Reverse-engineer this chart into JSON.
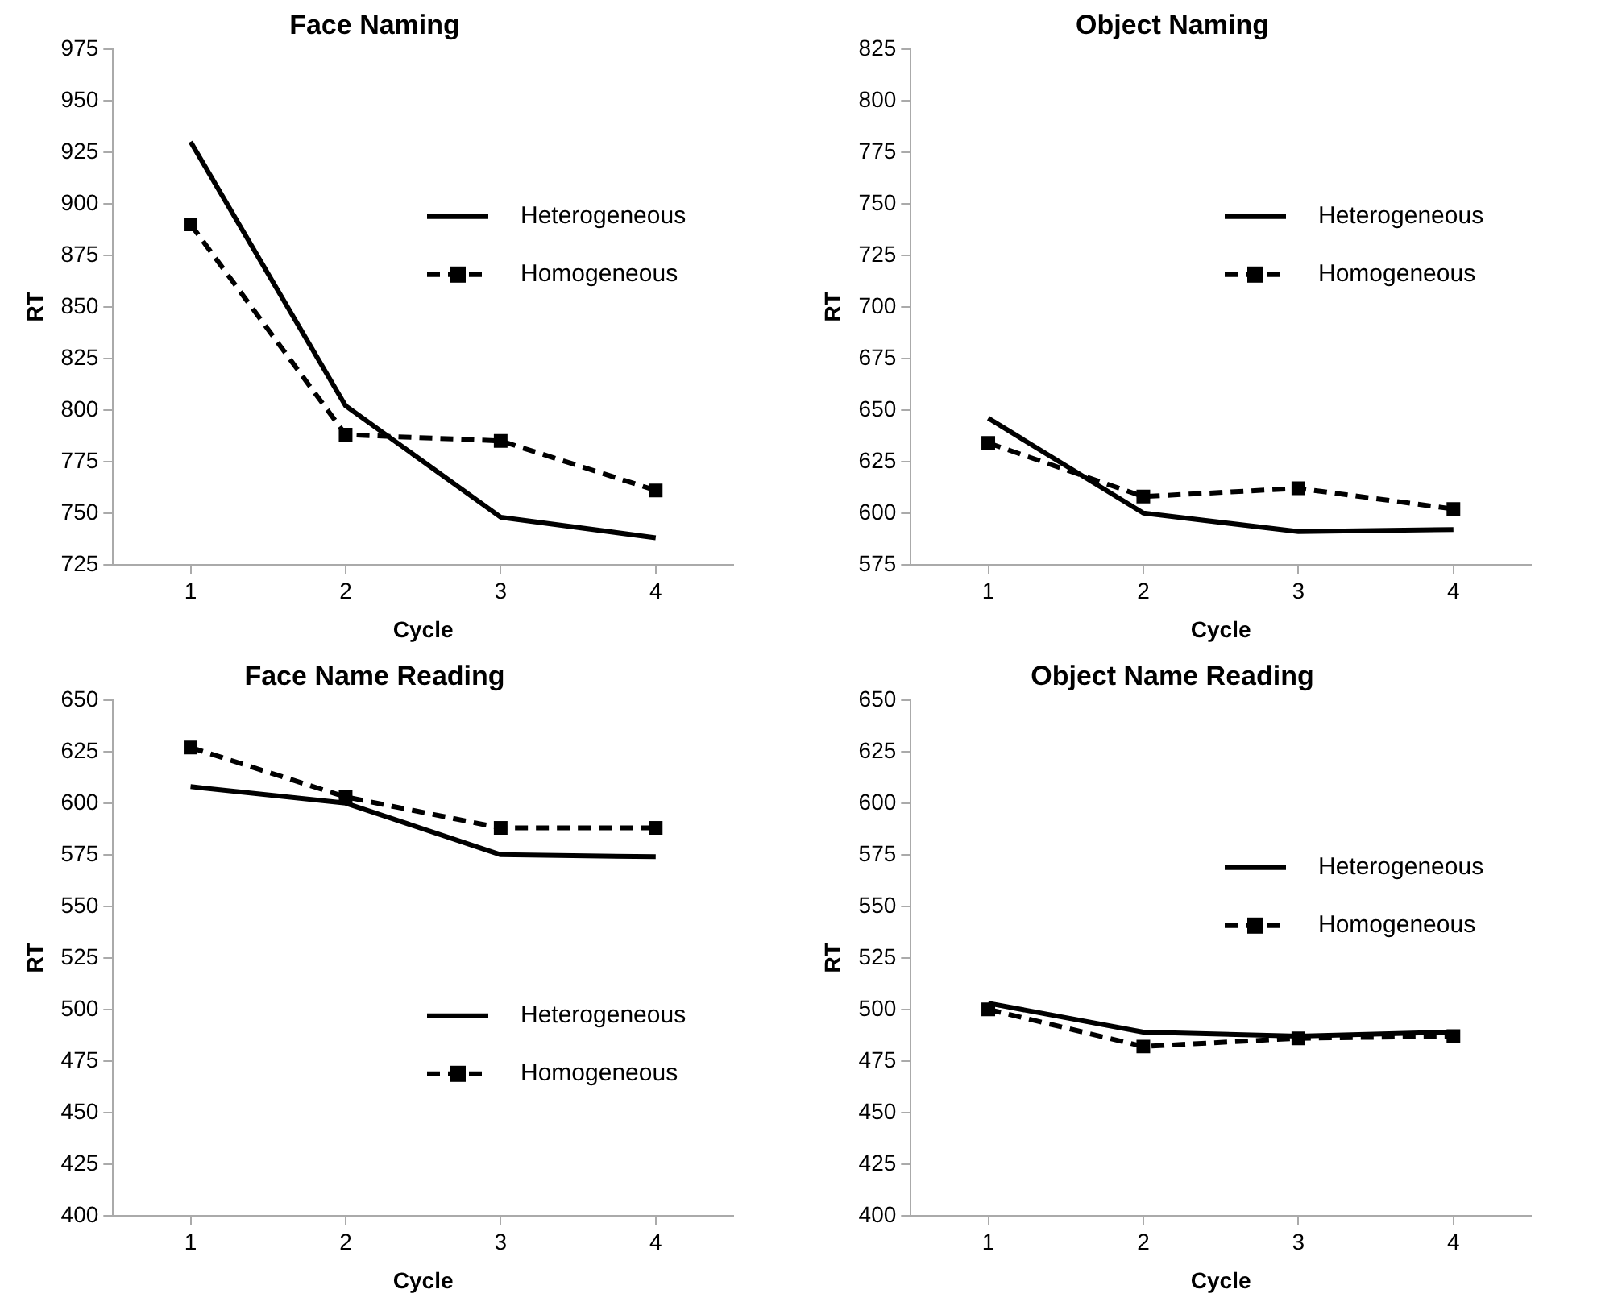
{
  "chart_data": [
    {
      "type": "line",
      "title": "Face Naming",
      "xlabel": "Cycle",
      "ylabel": "RT",
      "categories": [
        "1",
        "2",
        "3",
        "4"
      ],
      "ylim": [
        725,
        975
      ],
      "yticks": [
        725,
        750,
        775,
        800,
        825,
        850,
        875,
        900,
        925,
        950,
        975
      ],
      "legend": "right",
      "series": [
        {
          "name": "Heterogeneous",
          "color": "#000000",
          "line_style": "solid",
          "marker": "none",
          "values": [
            930,
            802,
            748,
            738
          ]
        },
        {
          "name": "Homogeneous",
          "color": "#000000",
          "line_style": "dashed",
          "marker": "square",
          "values": [
            890,
            788,
            785,
            761
          ]
        }
      ]
    },
    {
      "type": "line",
      "title": "Object Naming",
      "xlabel": "Cycle",
      "ylabel": "RT",
      "categories": [
        "1",
        "2",
        "3",
        "4"
      ],
      "ylim": [
        575,
        825
      ],
      "yticks": [
        575,
        600,
        625,
        650,
        675,
        700,
        725,
        750,
        775,
        800,
        825
      ],
      "legend": "right",
      "series": [
        {
          "name": "Heterogeneous",
          "color": "#000000",
          "line_style": "solid",
          "marker": "none",
          "values": [
            646,
            600,
            591,
            592
          ]
        },
        {
          "name": "Homogeneous",
          "color": "#000000",
          "line_style": "dashed",
          "marker": "square",
          "values": [
            634,
            608,
            612,
            602
          ]
        }
      ]
    },
    {
      "type": "line",
      "title": "Face Name Reading",
      "xlabel": "Cycle",
      "ylabel": "RT",
      "categories": [
        "1",
        "2",
        "3",
        "4"
      ],
      "ylim": [
        400,
        650
      ],
      "yticks": [
        400,
        425,
        450,
        475,
        500,
        525,
        550,
        575,
        600,
        625,
        650
      ],
      "legend": "bottom right",
      "series": [
        {
          "name": "Heterogeneous",
          "color": "#000000",
          "line_style": "solid",
          "marker": "none",
          "values": [
            608,
            600,
            575,
            574
          ]
        },
        {
          "name": "Homogeneous",
          "color": "#000000",
          "line_style": "dashed",
          "marker": "square",
          "values": [
            627,
            603,
            588,
            588
          ]
        }
      ]
    },
    {
      "type": "line",
      "title": "Object Name Reading",
      "xlabel": "Cycle",
      "ylabel": "RT",
      "categories": [
        "1",
        "2",
        "3",
        "4"
      ],
      "ylim": [
        400,
        650
      ],
      "yticks": [
        400,
        425,
        450,
        475,
        500,
        525,
        550,
        575,
        600,
        625,
        650
      ],
      "legend": "right",
      "series": [
        {
          "name": "Heterogeneous",
          "color": "#000000",
          "line_style": "solid",
          "marker": "none",
          "values": [
            503,
            489,
            487,
            489
          ]
        },
        {
          "name": "Homogeneous",
          "color": "#000000",
          "line_style": "dashed",
          "marker": "square",
          "values": [
            500,
            482,
            486,
            487
          ]
        }
      ]
    }
  ]
}
